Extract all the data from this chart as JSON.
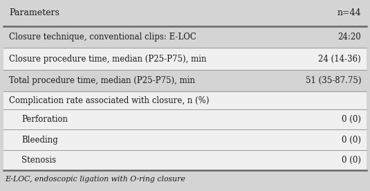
{
  "header": [
    "Parameters",
    "n=44"
  ],
  "rows": [
    {
      "label": "Closure technique, conventional clips: E-LOC",
      "value": "24:20",
      "bg": "#d4d4d4",
      "indent": 0
    },
    {
      "label": "Closure procedure time, median (P25-P75), min",
      "value": "24 (14-36)",
      "bg": "#f0f0f0",
      "indent": 0
    },
    {
      "label": "Total procedure time, median (P25-P75), min",
      "value": "51 (35-87.75)",
      "bg": "#d4d4d4",
      "indent": 0
    },
    {
      "label": "Complication rate associated with closure, n (%)",
      "value": "",
      "bg": "#f0f0f0",
      "indent": 0
    },
    {
      "label": "Perforation",
      "value": "0 (0)",
      "bg": "#f0f0f0",
      "indent": 1
    },
    {
      "label": "Bleeding",
      "value": "0 (0)",
      "bg": "#f0f0f0",
      "indent": 1
    },
    {
      "label": "Stenosis",
      "value": "0 (0)",
      "bg": "#f0f0f0",
      "indent": 1
    }
  ],
  "footnote": "E-LOC, endoscopic ligation with O-ring closure",
  "fig_bg": "#d4d4d4",
  "header_bg": "#d4d4d4",
  "text_color": "#1a1a1a",
  "font_size": 8.5,
  "header_font_size": 9.0,
  "footnote_font_size": 7.8,
  "line_color": "#888888",
  "thick_line_color": "#666666"
}
